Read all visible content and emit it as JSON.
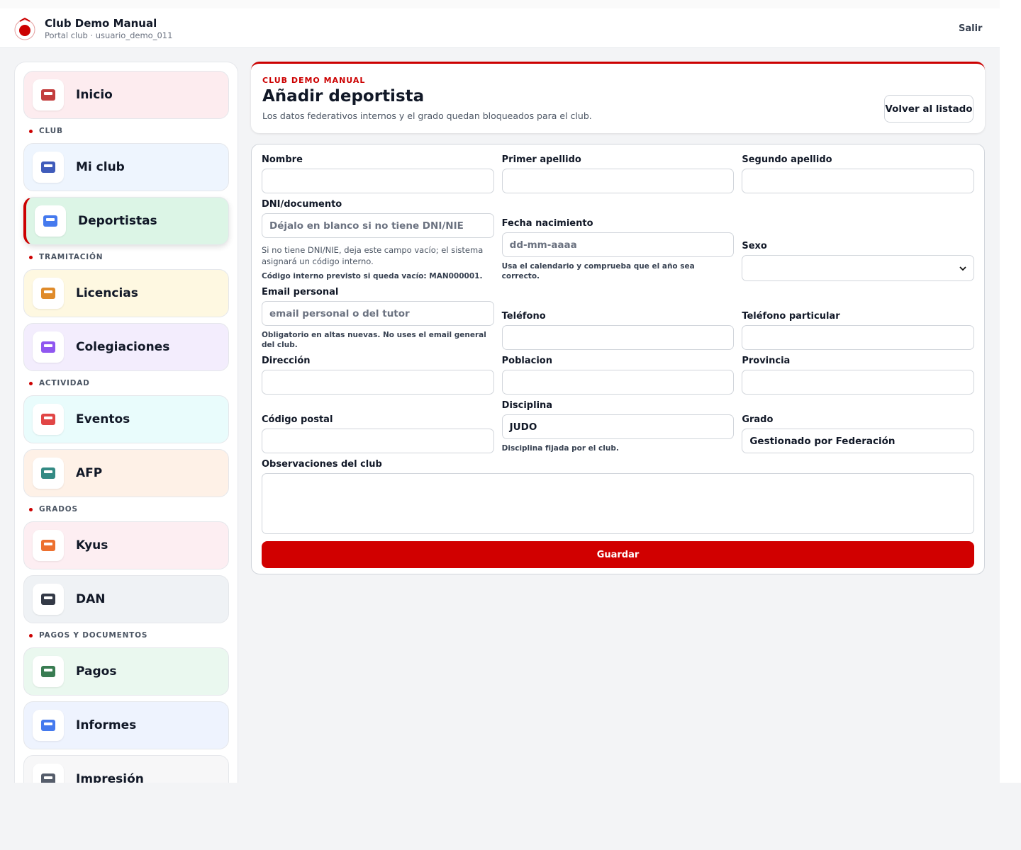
{
  "header": {
    "title": "Club Demo Manual",
    "subtitle": "Portal club · usuario_demo_011",
    "logout": "Salir"
  },
  "sidebar": {
    "top": "Inicio",
    "sections": [
      {
        "title": "CLUB",
        "items": [
          "Mi club",
          "Deportistas"
        ]
      },
      {
        "title": "TRAMITACIÓN",
        "items": [
          "Licencias",
          "Colegiaciones"
        ]
      },
      {
        "title": "ACTIVIDAD",
        "items": [
          "Eventos",
          "AFP"
        ]
      },
      {
        "title": "GRADOS",
        "items": [
          "Kyus",
          "DAN"
        ]
      },
      {
        "title": "PAGOS Y DOCUMENTOS",
        "items": [
          "Pagos",
          "Informes",
          "Impresión"
        ]
      }
    ]
  },
  "page": {
    "eyebrow": "CLUB DEMO MANUAL",
    "title": "Añadir deportista",
    "description": "Los datos federativos internos y el grado quedan bloqueados para el club.",
    "back": "Volver al listado"
  },
  "form": {
    "rows": [
      [
        {
          "label": "Nombre"
        },
        {
          "label": "Primer apellido"
        },
        {
          "label": "Segundo apellido"
        }
      ],
      [
        {
          "label": "DNI/documento",
          "placeholder": "Déjalo en blanco si no tiene DNI/NIE",
          "help": "Si no tiene DNI/NIE, deja este campo vacío; el sistema asignará un código interno.",
          "note": "Código interno previsto si queda vacío: MAN000001."
        },
        {
          "label": "Fecha nacimiento",
          "placeholder": "dd-mm-aaaa",
          "note": "Usa el calendario y comprueba que el año sea correcto."
        },
        {
          "label": "Sexo",
          "kind": "select"
        }
      ],
      [
        {
          "label": "Email personal",
          "placeholder": "email personal o del tutor",
          "note": "Obligatorio en altas nuevas. No uses el email general del club."
        },
        {
          "label": "Teléfono"
        },
        {
          "label": "Teléfono particular"
        }
      ],
      [
        {
          "label": "Dirección"
        },
        {
          "label": "Poblacion"
        },
        {
          "label": "Provincia"
        }
      ],
      [
        {
          "label": "Código postal"
        },
        {
          "label": "Disciplina",
          "value": "JUDO",
          "note": "Disciplina fijada por el club."
        },
        {
          "label": "Grado",
          "value": "Gestionado por Federación"
        }
      ]
    ],
    "observations": "Observaciones del club",
    "submit": "Guardar"
  }
}
